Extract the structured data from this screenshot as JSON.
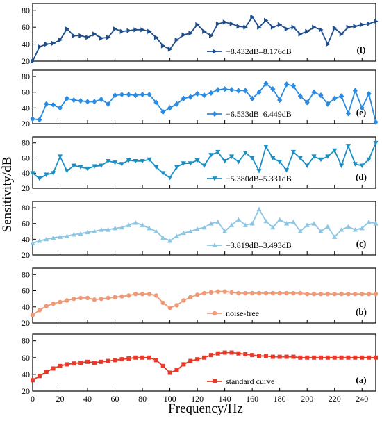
{
  "figure": {
    "xlabel": "Frequency/Hz",
    "ylabel": "Sensitivity/dB"
  },
  "chart_data": [
    {
      "panel": "f",
      "type": "line",
      "panel_label": "(f)",
      "xlim": [
        0,
        250
      ],
      "ylim": [
        20,
        88
      ],
      "yticks": [
        20,
        40,
        60,
        80
      ],
      "xticks": [],
      "legend_text": "−8.432dB–8.176dB",
      "legend_position": "lower-right",
      "marker": "triangle-right",
      "color": "#1f4e8c",
      "series": [
        {
          "name": "−8.432dB–8.176dB",
          "x": [
            0,
            5,
            10,
            15,
            20,
            25,
            30,
            35,
            40,
            45,
            50,
            55,
            60,
            65,
            70,
            75,
            80,
            85,
            90,
            95,
            100,
            105,
            110,
            115,
            120,
            125,
            130,
            135,
            140,
            145,
            150,
            155,
            160,
            165,
            170,
            175,
            180,
            185,
            190,
            195,
            200,
            205,
            210,
            215,
            220,
            225,
            230,
            235,
            240,
            245,
            250
          ],
          "values": [
            20,
            37,
            40,
            41,
            45,
            58,
            50,
            50,
            48,
            52,
            47,
            48,
            58,
            55,
            56,
            57,
            57,
            55,
            48,
            38,
            34,
            45,
            51,
            53,
            63,
            55,
            50,
            64,
            66,
            64,
            61,
            60,
            72,
            60,
            68,
            60,
            63,
            58,
            60,
            52,
            55,
            60,
            57,
            40,
            59,
            52,
            60,
            61,
            63,
            64,
            67
          ]
        }
      ]
    },
    {
      "panel": "e",
      "type": "line",
      "panel_label": "(e)",
      "xlim": [
        0,
        250
      ],
      "ylim": [
        20,
        88
      ],
      "yticks": [
        20,
        40,
        60,
        80
      ],
      "xticks": [],
      "legend_text": "−6.533dB–6.449dB",
      "legend_position": "lower-right",
      "marker": "diamond",
      "color": "#2a8be0",
      "series": [
        {
          "name": "−6.533dB–6.449dB",
          "x": [
            0,
            5,
            10,
            15,
            20,
            25,
            30,
            35,
            40,
            45,
            50,
            55,
            60,
            65,
            70,
            75,
            80,
            85,
            90,
            95,
            100,
            105,
            110,
            115,
            120,
            125,
            130,
            135,
            140,
            145,
            150,
            155,
            160,
            165,
            170,
            175,
            180,
            185,
            190,
            195,
            200,
            205,
            210,
            215,
            220,
            225,
            230,
            235,
            240,
            245,
            250
          ],
          "values": [
            26,
            25,
            45,
            44,
            40,
            52,
            50,
            49,
            48,
            48,
            51,
            45,
            56,
            57,
            57,
            56,
            57,
            57,
            47,
            35,
            40,
            45,
            52,
            54,
            58,
            56,
            59,
            63,
            64,
            63,
            62,
            62,
            52,
            60,
            71,
            64,
            50,
            70,
            68,
            55,
            47,
            60,
            56,
            45,
            52,
            55,
            33,
            62,
            40,
            58,
            22
          ]
        }
      ]
    },
    {
      "panel": "d",
      "type": "line",
      "panel_label": "(d)",
      "xlim": [
        0,
        250
      ],
      "ylim": [
        20,
        88
      ],
      "yticks": [
        20,
        40,
        60,
        80
      ],
      "xticks": [],
      "legend_text": "−5.380dB–5.331dB",
      "legend_position": "lower-right",
      "marker": "triangle-down",
      "color": "#1b8fc4",
      "series": [
        {
          "name": "−5.380dB–5.331dB",
          "x": [
            0,
            5,
            10,
            15,
            20,
            25,
            30,
            35,
            40,
            45,
            50,
            55,
            60,
            65,
            70,
            75,
            80,
            85,
            90,
            95,
            100,
            105,
            110,
            115,
            120,
            125,
            130,
            135,
            140,
            145,
            150,
            155,
            160,
            165,
            170,
            175,
            180,
            185,
            190,
            195,
            200,
            205,
            210,
            215,
            220,
            225,
            230,
            235,
            240,
            245,
            250
          ],
          "values": [
            40,
            33,
            38,
            40,
            62,
            43,
            50,
            48,
            46,
            49,
            50,
            56,
            54,
            52,
            57,
            56,
            56,
            58,
            48,
            40,
            34,
            48,
            53,
            53,
            57,
            50,
            64,
            68,
            56,
            62,
            55,
            67,
            60,
            43,
            75,
            60,
            55,
            44,
            68,
            60,
            50,
            62,
            58,
            62,
            70,
            50,
            76,
            52,
            50,
            58,
            80
          ]
        }
      ]
    },
    {
      "panel": "c",
      "type": "line",
      "panel_label": "(c)",
      "xlim": [
        0,
        250
      ],
      "ylim": [
        20,
        88
      ],
      "yticks": [
        20,
        40,
        60,
        80
      ],
      "xticks": [],
      "legend_text": "−3.819dB–3.493dB",
      "legend_position": "lower-right",
      "marker": "triangle-up",
      "color": "#8cc6e2",
      "series": [
        {
          "name": "−3.819dB–3.493dB",
          "x": [
            0,
            5,
            10,
            15,
            20,
            25,
            30,
            35,
            40,
            45,
            50,
            55,
            60,
            65,
            70,
            75,
            80,
            85,
            90,
            95,
            100,
            105,
            110,
            115,
            120,
            125,
            130,
            135,
            140,
            145,
            150,
            155,
            160,
            165,
            170,
            175,
            180,
            185,
            190,
            195,
            200,
            205,
            210,
            215,
            220,
            225,
            230,
            235,
            240,
            245,
            250
          ],
          "values": [
            35,
            38,
            40,
            42,
            43,
            44,
            46,
            47,
            49,
            50,
            52,
            52,
            54,
            55,
            58,
            61,
            58,
            54,
            50,
            42,
            38,
            44,
            48,
            50,
            53,
            55,
            60,
            62,
            50,
            58,
            65,
            58,
            60,
            78,
            63,
            55,
            65,
            60,
            62,
            50,
            58,
            60,
            50,
            56,
            43,
            52,
            56,
            52,
            54,
            62,
            60
          ]
        }
      ]
    },
    {
      "panel": "b",
      "type": "line",
      "panel_label": "(b)",
      "xlim": [
        0,
        250
      ],
      "ylim": [
        20,
        88
      ],
      "yticks": [
        20,
        40,
        60,
        80
      ],
      "xticks": [],
      "legend_text": "noise-free",
      "legend_position": "lower-right",
      "marker": "circle",
      "color": "#ef9977",
      "series": [
        {
          "name": "noise-free",
          "x": [
            0,
            5,
            10,
            15,
            20,
            25,
            30,
            35,
            40,
            45,
            50,
            55,
            60,
            65,
            70,
            75,
            80,
            85,
            90,
            95,
            100,
            105,
            110,
            115,
            120,
            125,
            130,
            135,
            140,
            145,
            150,
            155,
            160,
            165,
            170,
            175,
            180,
            185,
            190,
            195,
            200,
            205,
            210,
            215,
            220,
            225,
            230,
            235,
            240,
            245,
            250
          ],
          "values": [
            30,
            36,
            41,
            44,
            46,
            48,
            50,
            51,
            51,
            49,
            50,
            51,
            52,
            53,
            54,
            56,
            56,
            56,
            54,
            45,
            39,
            42,
            48,
            52,
            55,
            57,
            58,
            59,
            59,
            58,
            57,
            57,
            57,
            57,
            57,
            57,
            57,
            57,
            57,
            57,
            56,
            56,
            56,
            56,
            56,
            56,
            56,
            56,
            56,
            56,
            56
          ]
        }
      ]
    },
    {
      "panel": "a",
      "type": "line",
      "panel_label": "(a)",
      "xlim": [
        0,
        250
      ],
      "ylim": [
        20,
        88
      ],
      "yticks": [
        20,
        40,
        60,
        80
      ],
      "xticks": [
        0,
        20,
        40,
        60,
        80,
        100,
        120,
        140,
        160,
        180,
        200,
        220,
        240
      ],
      "xlabel": "Frequency/Hz",
      "legend_text": "standard curve",
      "legend_position": "lower-right",
      "marker": "square",
      "color": "#e83a2a",
      "series": [
        {
          "name": "standard curve",
          "x": [
            0,
            5,
            10,
            15,
            20,
            25,
            30,
            35,
            40,
            45,
            50,
            55,
            60,
            65,
            70,
            75,
            80,
            85,
            90,
            95,
            100,
            105,
            110,
            115,
            120,
            125,
            130,
            135,
            140,
            145,
            150,
            155,
            160,
            165,
            170,
            175,
            180,
            185,
            190,
            195,
            200,
            205,
            210,
            215,
            220,
            225,
            230,
            235,
            240,
            245,
            250
          ],
          "values": [
            33,
            38,
            43,
            47,
            50,
            52,
            53,
            54,
            55,
            54,
            55,
            56,
            57,
            58,
            59,
            60,
            60,
            60,
            57,
            50,
            42,
            45,
            52,
            56,
            58,
            60,
            63,
            65,
            66,
            66,
            65,
            64,
            63,
            62,
            62,
            61,
            61,
            61,
            61,
            60,
            60,
            60,
            60,
            60,
            60,
            60,
            60,
            60,
            60,
            60,
            60
          ]
        }
      ]
    }
  ]
}
